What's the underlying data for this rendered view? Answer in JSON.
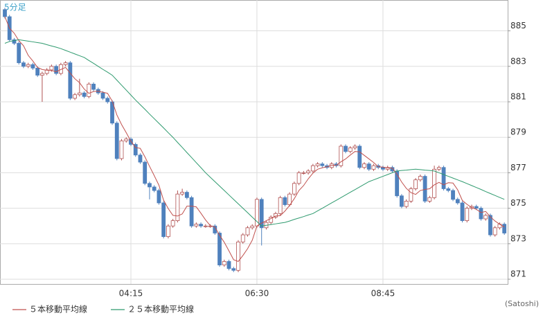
{
  "chart_data": {
    "type": "candlestick",
    "timeframe": "5分足",
    "credit": "(Satoshi)",
    "categories": [
      null,
      null,
      null,
      null,
      null,
      null,
      null,
      null,
      null,
      null,
      null,
      null,
      null,
      null,
      null,
      null,
      null,
      null,
      null,
      null,
      null,
      null,
      null,
      null,
      null,
      null,
      null,
      "04:15",
      null,
      null,
      null,
      null,
      null,
      null,
      null,
      null,
      null,
      null,
      null,
      null,
      null,
      null,
      null,
      null,
      null,
      null,
      null,
      null,
      null,
      null,
      null,
      null,
      null,
      null,
      "06:30",
      null,
      null,
      null,
      null,
      null,
      null,
      null,
      null,
      null,
      null,
      null,
      null,
      null,
      null,
      null,
      null,
      null,
      null,
      null,
      null,
      null,
      null,
      null,
      null,
      null,
      null,
      "08:45",
      null,
      null,
      null,
      null,
      null,
      null,
      null,
      null,
      null,
      null,
      null,
      null,
      null,
      null,
      null,
      null,
      null,
      null,
      null,
      null,
      null,
      null,
      null,
      null,
      null,
      null
    ],
    "open": [
      886.2,
      885.8,
      884.5,
      884.3,
      883.2,
      883.0,
      883.1,
      882.9,
      882.5,
      882.6,
      882.8,
      883.0,
      882.6,
      883.1,
      883.2,
      881.2,
      881.4,
      881.5,
      881.3,
      882.0,
      881.7,
      881.5,
      881.2,
      881.0,
      879.8,
      877.8,
      878.8,
      878.9,
      878.6,
      878.0,
      877.6,
      876.4,
      876.2,
      876.0,
      875.3,
      873.4,
      874.0,
      874.3,
      875.8,
      875.9,
      875.6,
      874.0,
      874.1,
      874.0,
      874.0,
      874.0,
      873.6,
      871.8,
      872.0,
      871.6,
      871.5,
      873.1,
      873.5,
      873.9,
      874.0,
      875.5,
      873.9,
      874.2,
      874.5,
      874.7,
      875.6,
      875.2,
      875.8,
      876.4,
      877.0,
      877.0,
      877.1,
      877.4,
      877.5,
      877.4,
      877.3,
      877.5,
      877.4,
      878.5,
      878.2,
      878.4,
      878.5,
      877.3,
      877.5,
      877.2,
      877.4,
      877.3,
      877.2,
      877.3,
      877.1,
      875.7,
      875.1,
      875.4,
      876.1,
      876.6,
      876.8,
      875.4,
      875.6,
      877.2,
      877.3,
      876.1,
      876.0,
      875.5,
      875.3,
      874.3,
      875.0,
      875.1,
      875.0,
      874.4,
      874.6,
      873.5,
      873.9,
      874.1
    ],
    "high": [
      886.3,
      885.9,
      884.6,
      884.4,
      883.3,
      883.2,
      883.2,
      883.0,
      882.7,
      882.9,
      883.1,
      883.1,
      883.2,
      883.3,
      883.3,
      881.5,
      882.3,
      881.6,
      882.1,
      882.1,
      881.8,
      881.6,
      881.3,
      881.1,
      879.9,
      878.9,
      879.0,
      879.0,
      878.7,
      878.1,
      877.7,
      876.5,
      876.3,
      876.1,
      875.4,
      874.1,
      874.4,
      876.0,
      876.1,
      876.0,
      875.7,
      874.2,
      874.2,
      874.1,
      874.1,
      874.1,
      873.7,
      872.1,
      872.1,
      871.7,
      873.2,
      873.6,
      874.0,
      874.1,
      875.6,
      875.6,
      874.3,
      874.6,
      874.8,
      875.7,
      875.7,
      875.9,
      876.5,
      877.1,
      877.1,
      877.2,
      877.5,
      877.6,
      877.6,
      877.5,
      877.6,
      877.6,
      878.6,
      878.6,
      878.5,
      878.6,
      878.6,
      877.6,
      877.6,
      877.5,
      877.5,
      877.4,
      877.4,
      877.4,
      877.2,
      875.8,
      875.5,
      876.2,
      876.7,
      876.9,
      876.9,
      875.7,
      877.4,
      877.4,
      877.4,
      876.2,
      876.1,
      875.6,
      875.4,
      875.1,
      875.2,
      875.2,
      875.1,
      874.7,
      874.7,
      874.0,
      874.2,
      874.2
    ],
    "low": [
      885.7,
      884.4,
      884.2,
      883.1,
      882.9,
      882.9,
      882.8,
      882.4,
      881.0,
      882.5,
      882.7,
      882.5,
      882.5,
      883.0,
      881.1,
      881.1,
      881.3,
      881.2,
      881.2,
      881.6,
      881.4,
      881.1,
      880.9,
      879.7,
      877.7,
      877.7,
      878.7,
      878.5,
      877.9,
      877.5,
      876.3,
      875.5,
      875.9,
      875.2,
      873.3,
      873.3,
      873.9,
      874.2,
      875.7,
      875.5,
      873.9,
      873.9,
      873.9,
      873.9,
      873.9,
      873.5,
      871.7,
      871.7,
      871.5,
      871.4,
      871.4,
      873.0,
      873.4,
      873.8,
      873.9,
      872.9,
      873.8,
      874.1,
      874.4,
      874.6,
      875.1,
      875.1,
      875.7,
      876.3,
      876.9,
      876.9,
      877.0,
      877.3,
      877.3,
      877.2,
      877.2,
      877.3,
      877.3,
      878.1,
      878.1,
      878.3,
      877.2,
      877.2,
      877.1,
      877.1,
      877.2,
      877.1,
      877.1,
      877.0,
      875.6,
      875.0,
      875.0,
      875.3,
      876.0,
      876.5,
      875.3,
      875.3,
      875.5,
      877.1,
      876.0,
      875.9,
      875.4,
      875.2,
      874.2,
      874.2,
      874.9,
      874.9,
      874.3,
      874.3,
      873.4,
      873.4,
      873.8,
      873.5
    ],
    "close": [
      885.8,
      884.5,
      884.3,
      883.2,
      883.0,
      883.1,
      882.9,
      882.5,
      882.6,
      882.8,
      883.0,
      882.6,
      883.1,
      883.2,
      881.2,
      881.4,
      881.5,
      881.3,
      882.0,
      881.7,
      881.5,
      881.2,
      881.0,
      879.8,
      877.8,
      878.8,
      878.9,
      878.6,
      878.0,
      877.6,
      876.4,
      876.2,
      876.0,
      875.3,
      873.4,
      874.0,
      874.3,
      875.8,
      875.9,
      875.6,
      874.0,
      874.1,
      874.0,
      874.0,
      874.0,
      873.6,
      871.8,
      872.0,
      871.6,
      871.5,
      873.1,
      873.5,
      873.9,
      874.0,
      875.5,
      873.9,
      874.2,
      874.5,
      874.7,
      875.6,
      875.2,
      875.8,
      876.4,
      877.0,
      877.0,
      877.1,
      877.4,
      877.5,
      877.4,
      877.3,
      877.5,
      877.4,
      878.5,
      878.2,
      878.4,
      878.5,
      877.3,
      877.5,
      877.2,
      877.4,
      877.3,
      877.2,
      877.3,
      877.1,
      875.7,
      875.1,
      875.4,
      876.1,
      876.6,
      876.8,
      875.4,
      875.6,
      877.2,
      877.3,
      876.1,
      876.0,
      875.5,
      875.3,
      874.3,
      875.0,
      875.1,
      875.0,
      874.4,
      874.6,
      873.5,
      873.9,
      874.1,
      873.6
    ],
    "up_color": "#ffffff",
    "up_stroke": "#b05050",
    "down_color": "#4f81bd",
    "series": [
      {
        "name": "５本移動平均線",
        "color": "#c0504d",
        "values": [
          885.8,
          885.15,
          884.87,
          884.45,
          884.16,
          883.62,
          883.3,
          882.94,
          882.82,
          882.78,
          882.76,
          882.7,
          882.82,
          882.94,
          882.62,
          882.3,
          882.08,
          881.72,
          881.48,
          881.58,
          881.6,
          881.54,
          881.48,
          881.04,
          880.26,
          879.72,
          879.26,
          878.78,
          878.42,
          878.38,
          877.9,
          877.36,
          876.84,
          876.3,
          875.46,
          874.98,
          874.6,
          874.56,
          874.68,
          875.12,
          875.12,
          875.08,
          874.72,
          874.34,
          874.02,
          873.94,
          873.48,
          873.08,
          872.6,
          872.1,
          872.0,
          872.34,
          872.72,
          873.2,
          874.0,
          874.16,
          874.3,
          874.42,
          874.56,
          874.58,
          874.84,
          875.16,
          875.54,
          876.0,
          876.28,
          876.66,
          876.98,
          877.2,
          877.28,
          877.34,
          877.42,
          877.42,
          877.62,
          877.78,
          878.0,
          878.2,
          878.18,
          877.98,
          877.78,
          877.58,
          877.34,
          877.32,
          877.28,
          877.26,
          876.92,
          876.48,
          876.12,
          875.88,
          875.78,
          876.0,
          876.06,
          876.1,
          876.32,
          876.46,
          876.32,
          876.44,
          876.42,
          876.04,
          875.44,
          875.22,
          875.04,
          874.94,
          874.76,
          874.82,
          874.52,
          874.28,
          874.1,
          873.94
        ]
      },
      {
        "name": "２５本移動平均線",
        "color": "#2e9a6e",
        "values": [
          884.3,
          884.4,
          884.45,
          884.5,
          884.46,
          884.42,
          884.38,
          884.34,
          884.3,
          884.22,
          884.15,
          884.08,
          884.0,
          883.9,
          883.8,
          883.7,
          883.6,
          883.5,
          883.33,
          883.17,
          883.0,
          882.83,
          882.67,
          882.5,
          882.22,
          881.94,
          881.66,
          881.38,
          881.1,
          880.84,
          880.58,
          880.31,
          880.05,
          879.79,
          879.53,
          879.26,
          879.0,
          878.71,
          878.43,
          878.14,
          877.86,
          877.57,
          877.29,
          877.0,
          876.75,
          876.5,
          876.25,
          876.0,
          875.75,
          875.5,
          875.25,
          875.0,
          874.75,
          874.5,
          874.25,
          874.0,
          874.04,
          874.08,
          874.12,
          874.16,
          874.2,
          874.28,
          874.37,
          874.45,
          874.53,
          874.62,
          874.7,
          874.85,
          875.0,
          875.15,
          875.3,
          875.45,
          875.6,
          875.75,
          875.9,
          876.05,
          876.2,
          876.35,
          876.5,
          876.6,
          876.7,
          876.8,
          876.9,
          877.0,
          877.1,
          877.13,
          877.15,
          877.18,
          877.2,
          877.18,
          877.15,
          877.13,
          877.1,
          877.0,
          876.9,
          876.8,
          876.7,
          876.6,
          876.5,
          876.39,
          876.28,
          876.17,
          876.06,
          875.94,
          875.83,
          875.72,
          875.61,
          875.5
        ]
      }
    ],
    "ylim": [
      870.73,
      886.74
    ],
    "yticks": [
      871,
      873,
      875,
      877,
      879,
      881,
      883,
      885
    ],
    "grid": true
  }
}
